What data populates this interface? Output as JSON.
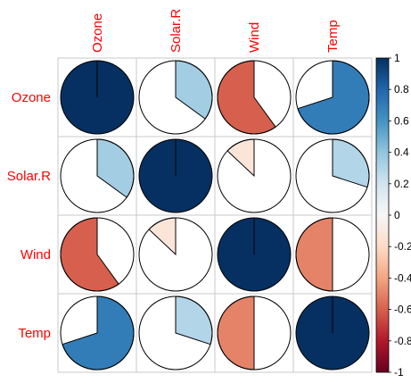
{
  "chart_data": {
    "type": "heatmap",
    "variables": [
      "Ozone",
      "Solar.R",
      "Wind",
      "Temp"
    ],
    "matrix": [
      [
        1.0,
        0.35,
        -0.6,
        0.7
      ],
      [
        0.35,
        1.0,
        -0.13,
        0.3
      ],
      [
        -0.6,
        -0.13,
        1.0,
        -0.5
      ],
      [
        0.7,
        0.3,
        -0.5,
        1.0
      ]
    ],
    "colorbar": {
      "min": -1,
      "max": 1,
      "ticks": [
        -1,
        -0.8,
        -0.6,
        -0.4,
        -0.2,
        0,
        0.2,
        0.4,
        0.6,
        0.8,
        1
      ],
      "tick_labels": [
        "-1",
        "-0.8",
        "-0.6",
        "-0.4",
        "-0.2",
        "0",
        "0.2",
        "0.4",
        "0.6",
        "0.8",
        "1"
      ],
      "placement": "right"
    },
    "label_color": "#ff0000",
    "palette": [
      "#67001f",
      "#b2182b",
      "#d6604d",
      "#f4a582",
      "#fddbc7",
      "#f7f7f7",
      "#d1e5f0",
      "#92c5de",
      "#4393c3",
      "#2166ac",
      "#053061"
    ],
    "grid": true
  }
}
